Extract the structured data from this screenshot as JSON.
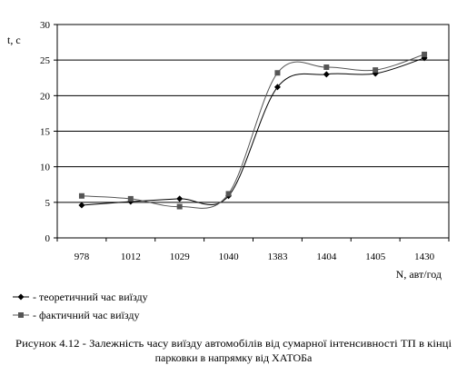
{
  "chart_data": {
    "type": "line",
    "categories": [
      "978",
      "1012",
      "1029",
      "1040",
      "1383",
      "1404",
      "1405",
      "1430"
    ],
    "series": [
      {
        "name": "- теоретичний час виїзду",
        "marker": "diamond",
        "color": "#000000",
        "values": [
          4.6,
          5.1,
          5.5,
          5.9,
          21.2,
          23.0,
          23.1,
          25.3
        ]
      },
      {
        "name": "- фактичний час виїзду",
        "marker": "square",
        "color": "#555555",
        "values": [
          5.9,
          5.5,
          4.4,
          6.2,
          23.2,
          24.0,
          23.6,
          25.8
        ]
      }
    ],
    "xlabel": "N, авт/год",
    "ylabel": "t, c",
    "ylim": [
      0,
      30
    ],
    "yticks": [
      "0",
      "5",
      "10",
      "15",
      "20",
      "25",
      "30"
    ],
    "grid": "horizontal",
    "legend": "bottom-left"
  },
  "caption": {
    "line1": "Рисунок 4.12 - Залежність часу виїзду автомобілів від сумарної  інтенсивності ТП в кінці",
    "line2": "парковки в напрямку від ХАТОБа"
  }
}
